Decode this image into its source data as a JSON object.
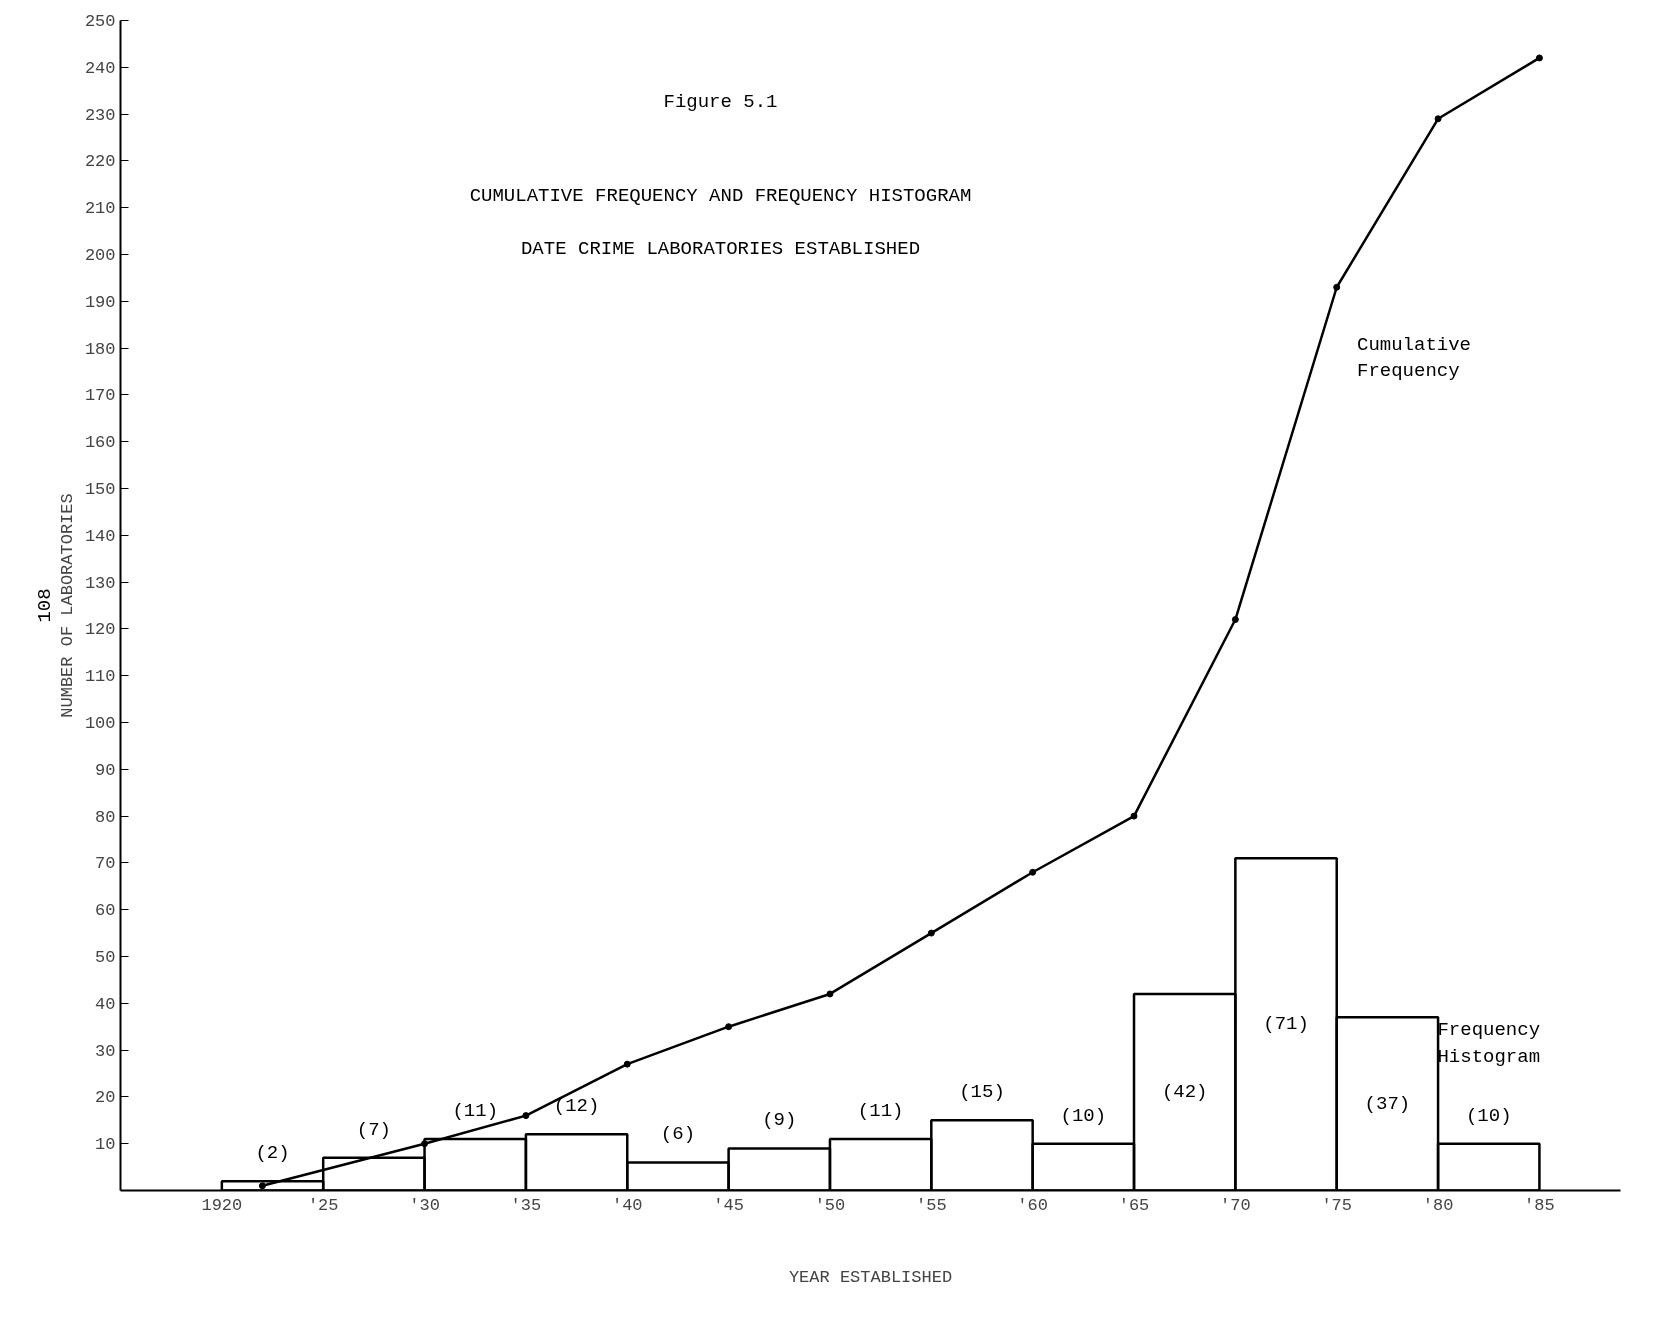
{
  "chart_data": {
    "type": "histogram",
    "title": "Figure 5.1",
    "subtitle": "CUMULATIVE FREQUENCY AND FREQUENCY HISTOGRAM\nDATE CRIME LABORATORIES ESTABLISHED",
    "xlabel": "YEAR ESTABLISHED",
    "ylabel": "NUMBER OF LABORATORIES",
    "annotations": [
      "108"
    ],
    "series": [
      {
        "name": "Frequency Histogram",
        "type": "histogram",
        "color": "#000000",
        "bins": [
          1920,
          1925,
          1930,
          1935,
          1940,
          1945,
          1950,
          1955,
          1960,
          1965,
          1970,
          1975,
          1980,
          1985
        ],
        "values": [
          2,
          7,
          11,
          12,
          6,
          9,
          11,
          15,
          10,
          42,
          71,
          37,
          10
        ],
        "value_labels": [
          "(2)",
          "(7)",
          "(11)",
          "(12)",
          "(6)",
          "(9)",
          "(11)",
          "(15)",
          "(10)",
          "(42)",
          "(71)",
          "(37)",
          "(10)"
        ]
      },
      {
        "name": "Cumulative Frequency",
        "type": "line",
        "color": "#000000",
        "marker": "circle",
        "x": [
          1922,
          1930,
          1935,
          1940,
          1945,
          1950,
          1955,
          1960,
          1965,
          1970,
          1975,
          1980,
          1985
        ],
        "values": [
          1,
          10,
          16,
          27,
          35,
          42,
          55,
          68,
          80,
          122,
          193,
          229,
          242
        ]
      }
    ],
    "xlim": [
      1915,
      1989
    ],
    "ylim": [
      0,
      250
    ],
    "xticks": [
      {
        "value": 1920,
        "label": "1920"
      },
      {
        "value": 1925,
        "label": "'25"
      },
      {
        "value": 1930,
        "label": "'30"
      },
      {
        "value": 1935,
        "label": "'35"
      },
      {
        "value": 1940,
        "label": "'40"
      },
      {
        "value": 1945,
        "label": "'45"
      },
      {
        "value": 1950,
        "label": "'50"
      },
      {
        "value": 1955,
        "label": "'55"
      },
      {
        "value": 1960,
        "label": "'60"
      },
      {
        "value": 1965,
        "label": "'65"
      },
      {
        "value": 1970,
        "label": "'70"
      },
      {
        "value": 1975,
        "label": "'75"
      },
      {
        "value": 1980,
        "label": "'80"
      },
      {
        "value": 1985,
        "label": "'85"
      }
    ],
    "yticks": [
      10,
      20,
      30,
      40,
      50,
      60,
      70,
      80,
      90,
      100,
      110,
      120,
      130,
      140,
      150,
      160,
      170,
      180,
      190,
      200,
      210,
      220,
      230,
      240,
      250
    ],
    "grid": false
  }
}
